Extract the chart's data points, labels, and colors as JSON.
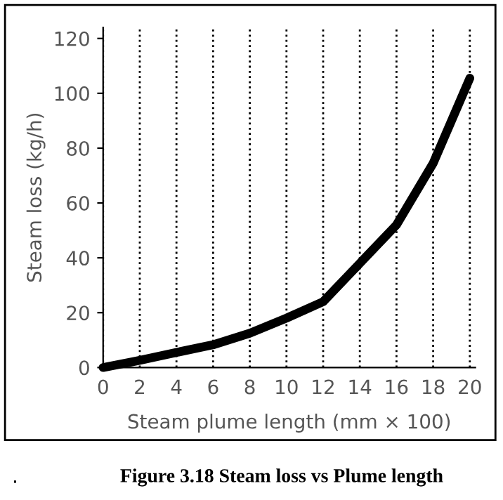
{
  "chart_data": {
    "type": "line",
    "xlabel": "Steam plume length (mm × 100)",
    "ylabel": "Steam loss (kg/h)",
    "x": [
      0,
      2,
      4,
      6,
      8,
      10,
      12,
      14,
      16,
      18,
      20
    ],
    "series": [
      {
        "color": "#000000",
        "values": [
          0,
          2.6,
          5.5,
          8.3,
          12.5,
          18,
          24,
          38,
          52,
          74.5,
          105.5
        ]
      }
    ],
    "xlim": [
      0,
      20.3
    ],
    "ylim": [
      0,
      124
    ],
    "xticks": [
      0,
      2,
      4,
      6,
      8,
      10,
      12,
      14,
      16,
      18,
      20
    ],
    "yticks": [
      0,
      20,
      40,
      60,
      80,
      100,
      120
    ],
    "grid": "x",
    "line_style": "solid",
    "marker": "none",
    "annotations": [
      "Figure 3.18 Steam loss vs Plume length",
      "."
    ]
  }
}
